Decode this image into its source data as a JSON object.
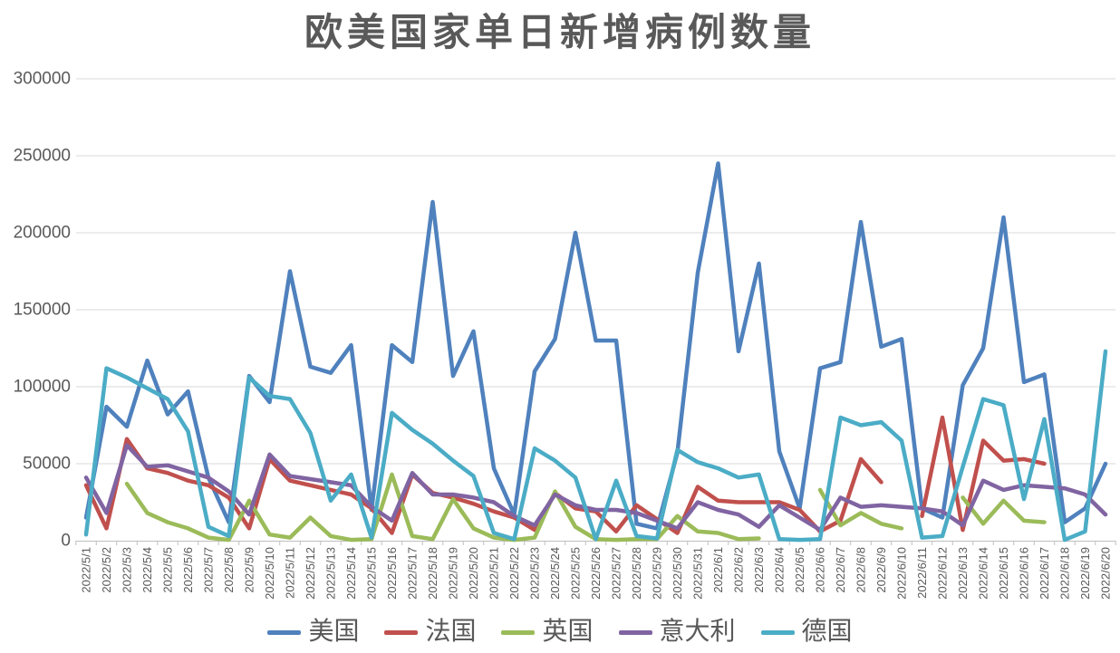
{
  "chart_data": {
    "type": "line",
    "title": "欧美国家单日新增病例数量",
    "xlabel": "",
    "ylabel": "",
    "ylim": [
      0,
      300000
    ],
    "y_ticks": [
      0,
      50000,
      100000,
      150000,
      200000,
      250000,
      300000
    ],
    "grid": "horizontal",
    "legend_position": "bottom",
    "text_color": "#595959",
    "grid_color": "#D9D9D9",
    "axis_color": "#BFBFBF",
    "categories": [
      "2022/5/1",
      "2022/5/2",
      "2022/5/3",
      "2022/5/4",
      "2022/5/5",
      "2022/5/6",
      "2022/5/7",
      "2022/5/8",
      "2022/5/9",
      "2022/5/10",
      "2022/5/11",
      "2022/5/12",
      "2022/5/13",
      "2022/5/14",
      "2022/5/15",
      "2022/5/16",
      "2022/5/17",
      "2022/5/18",
      "2022/5/19",
      "2022/5/20",
      "2022/5/21",
      "2022/5/22",
      "2022/5/23",
      "2022/5/24",
      "2022/5/25",
      "2022/5/26",
      "2022/5/27",
      "2022/5/28",
      "2022/5/29",
      "2022/5/30",
      "2022/5/31",
      "2022/6/1",
      "2022/6/2",
      "2022/6/3",
      "2022/6/4",
      "2022/6/5",
      "2022/6/6",
      "2022/6/7",
      "2022/6/8",
      "2022/6/9",
      "2022/6/10",
      "2022/6/11",
      "2022/6/12",
      "2022/6/13",
      "2022/6/14",
      "2022/6/15",
      "2022/6/16",
      "2022/6/17",
      "2022/6/18",
      "2022/6/19",
      "2022/6/20"
    ],
    "series": [
      {
        "id": "usa",
        "name": "美国",
        "color": "#4F81BD",
        "values": [
          15000,
          87000,
          74000,
          117000,
          82000,
          97000,
          41000,
          12000,
          107000,
          90000,
          175000,
          113000,
          109000,
          127000,
          20000,
          127000,
          116000,
          220000,
          107000,
          136000,
          47000,
          17000,
          110000,
          131000,
          200000,
          130000,
          130000,
          11000,
          8000,
          57000,
          174000,
          245000,
          123000,
          180000,
          58000,
          21000,
          112000,
          116000,
          207000,
          126000,
          131000,
          21000,
          15000,
          101000,
          125000,
          210000,
          103000,
          108000,
          12000,
          21000,
          50000
        ]
      },
      {
        "id": "france",
        "name": "法国",
        "color": "#C0504D",
        "values": [
          36000,
          8000,
          66000,
          47000,
          44000,
          39000,
          36000,
          28000,
          8000,
          53000,
          39000,
          36000,
          33000,
          30000,
          21000,
          5000,
          43000,
          31000,
          28000,
          24000,
          19000,
          15000,
          7000,
          31000,
          21000,
          19000,
          6000,
          23000,
          14000,
          5000,
          35000,
          26000,
          25000,
          25000,
          25000,
          20000,
          6000,
          13000,
          53000,
          38000,
          null,
          16000,
          80000,
          7000,
          65000,
          52000,
          53000,
          50000,
          null,
          null,
          null
        ]
      },
      {
        "id": "uk",
        "name": "英国",
        "color": "#9BBB59",
        "values": [
          null,
          null,
          37000,
          18000,
          12000,
          8000,
          2000,
          500,
          26000,
          4000,
          2000,
          15000,
          3000,
          500,
          1000,
          43000,
          3000,
          1000,
          27000,
          8000,
          2000,
          500,
          2000,
          32000,
          9000,
          1000,
          500,
          1000,
          1000,
          16000,
          6000,
          5000,
          1000,
          1500,
          null,
          null,
          33000,
          10000,
          18000,
          11000,
          8000,
          null,
          null,
          28000,
          11000,
          26000,
          13000,
          12000,
          null,
          null,
          null
        ]
      },
      {
        "id": "italy",
        "name": "意大利",
        "color": "#8064A2",
        "values": [
          41000,
          18000,
          62000,
          48000,
          49000,
          45000,
          41000,
          32000,
          17000,
          56000,
          42000,
          40000,
          38000,
          36000,
          22000,
          13000,
          44000,
          30000,
          30000,
          28000,
          25000,
          16000,
          10000,
          30000,
          23000,
          20000,
          20000,
          18000,
          13000,
          8000,
          25000,
          20000,
          17000,
          9000,
          23000,
          15000,
          7000,
          28000,
          22000,
          23000,
          22000,
          21000,
          19000,
          10000,
          39000,
          33000,
          36000,
          35000,
          34000,
          30000,
          17000
        ]
      },
      {
        "id": "germany",
        "name": "德国",
        "color": "#4BACC6",
        "values": [
          4000,
          112000,
          106000,
          99000,
          92000,
          71000,
          9000,
          3000,
          106000,
          94000,
          92000,
          70000,
          26000,
          43000,
          2000,
          83000,
          72000,
          63000,
          52000,
          42000,
          5000,
          1000,
          60000,
          52000,
          41000,
          1000,
          39000,
          3000,
          1500,
          59000,
          51000,
          47000,
          41000,
          43000,
          1000,
          500,
          1000,
          80000,
          75000,
          77000,
          65000,
          2000,
          3000,
          48000,
          92000,
          88000,
          27000,
          79000,
          500,
          6000,
          123000
        ]
      }
    ]
  }
}
